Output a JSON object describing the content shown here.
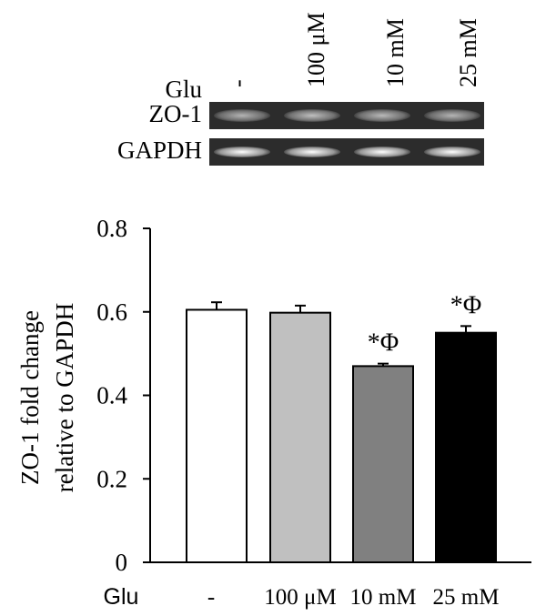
{
  "gel": {
    "row_label": "Glu",
    "lane_labels": [
      "-",
      "100 μM",
      "10 mM",
      "25 mM"
    ],
    "blots": [
      {
        "label": "ZO-1",
        "intensities": [
          0.55,
          0.62,
          0.58,
          0.55
        ]
      },
      {
        "label": "GAPDH",
        "intensities": [
          1.0,
          1.0,
          1.0,
          1.0
        ]
      }
    ]
  },
  "chart_data": {
    "type": "bar",
    "categories": [
      "-",
      "100 μM",
      "10 mM",
      "25 mM"
    ],
    "values": [
      0.605,
      0.598,
      0.47,
      0.55
    ],
    "errors": [
      0.018,
      0.017,
      0.006,
      0.016
    ],
    "annotations": [
      "",
      "",
      "*Φ",
      "*Φ"
    ],
    "bar_colors": [
      "#ffffff",
      "#c0c0c0",
      "#808080",
      "#000000"
    ],
    "title": "",
    "xlabel": "Glu",
    "ylabel_lines": [
      "ZO-1 fold change",
      "relative to GAPDH"
    ],
    "ylim": [
      0,
      0.8
    ],
    "yticks": [
      0,
      0.2,
      0.4,
      0.6,
      0.8
    ],
    "ytick_labels": [
      "0",
      "0.2",
      "0.4",
      "0.6",
      "0.8"
    ],
    "grid": false,
    "legend": "none"
  }
}
